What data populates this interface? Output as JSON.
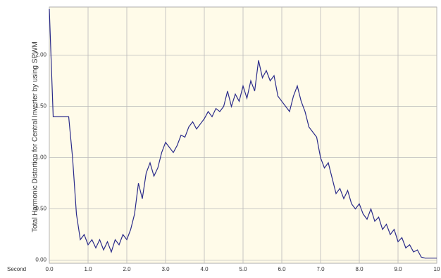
{
  "chart_data": {
    "type": "line",
    "y_label": "Total Harmonic Distortion for Central Inverter by using SPWM",
    "x_label": "Second",
    "x": [
      0,
      0.1,
      0.2,
      0.3,
      0.4,
      0.5,
      0.6,
      0.7,
      0.8,
      0.9,
      1.0,
      1.1,
      1.2,
      1.3,
      1.4,
      1.5,
      1.6,
      1.7,
      1.8,
      1.9,
      2.0,
      2.1,
      2.2,
      2.3,
      2.4,
      2.5,
      2.6,
      2.7,
      2.8,
      2.9,
      3.0,
      3.1,
      3.2,
      3.3,
      3.4,
      3.5,
      3.6,
      3.7,
      3.8,
      3.9,
      4.0,
      4.1,
      4.2,
      4.3,
      4.4,
      4.5,
      4.6,
      4.7,
      4.8,
      4.9,
      5.0,
      5.1,
      5.2,
      5.3,
      5.4,
      5.5,
      5.6,
      5.7,
      5.8,
      5.9,
      6.0,
      6.1,
      6.2,
      6.3,
      6.4,
      6.5,
      6.6,
      6.7,
      6.8,
      6.9,
      7.0,
      7.1,
      7.2,
      7.3,
      7.4,
      7.5,
      7.6,
      7.7,
      7.8,
      7.9,
      8.0,
      8.1,
      8.2,
      8.3,
      8.4,
      8.5,
      8.6,
      8.7,
      8.8,
      8.9,
      9.0,
      9.1,
      9.2,
      9.3,
      9.4,
      9.5,
      9.6,
      9.7,
      9.8,
      9.9,
      10
    ],
    "series": [
      {
        "color": "#2a2a8a",
        "values": [
          2.45,
          1.4,
          1.4,
          1.4,
          1.4,
          1.4,
          1.0,
          0.45,
          0.2,
          0.25,
          0.15,
          0.2,
          0.12,
          0.2,
          0.1,
          0.18,
          0.08,
          0.2,
          0.15,
          0.25,
          0.2,
          0.3,
          0.45,
          0.75,
          0.6,
          0.85,
          0.95,
          0.82,
          0.9,
          1.05,
          1.15,
          1.1,
          1.05,
          1.12,
          1.22,
          1.2,
          1.3,
          1.35,
          1.28,
          1.33,
          1.38,
          1.45,
          1.4,
          1.48,
          1.45,
          1.5,
          1.65,
          1.5,
          1.62,
          1.55,
          1.7,
          1.58,
          1.75,
          1.65,
          1.95,
          1.78,
          1.85,
          1.75,
          1.8,
          1.6,
          1.55,
          1.5,
          1.45,
          1.6,
          1.7,
          1.55,
          1.45,
          1.3,
          1.25,
          1.2,
          1.0,
          0.9,
          0.95,
          0.8,
          0.65,
          0.7,
          0.6,
          0.68,
          0.55,
          0.5,
          0.55,
          0.45,
          0.4,
          0.5,
          0.38,
          0.42,
          0.3,
          0.35,
          0.25,
          0.3,
          0.18,
          0.22,
          0.12,
          0.15,
          0.08,
          0.1,
          0.03,
          0.02,
          0.02,
          0.02,
          0.02
        ]
      }
    ],
    "xlim": [
      0,
      10
    ],
    "ylim": [
      -0.03,
      2.47
    ],
    "xticks": [
      {
        "value": 0,
        "label": "0.0"
      },
      {
        "value": 1,
        "label": "1.0"
      },
      {
        "value": 2,
        "label": "2.0"
      },
      {
        "value": 3,
        "label": "3.0"
      },
      {
        "value": 4,
        "label": "4.0"
      },
      {
        "value": 5,
        "label": "5.0"
      },
      {
        "value": 6,
        "label": "6.0"
      },
      {
        "value": 7,
        "label": "7.0"
      },
      {
        "value": 8,
        "label": "8.0"
      },
      {
        "value": 9,
        "label": "9.0"
      },
      10
    ],
    "yticks": [
      {
        "value": 0,
        "label": "0.00"
      },
      {
        "value": 0.5,
        "label": "0.50"
      },
      {
        "value": 1,
        "label": "1.00"
      },
      {
        "value": 1.5,
        "label": "1.50"
      },
      {
        "value": 2,
        "label": "2.00"
      }
    ],
    "grid": true
  }
}
